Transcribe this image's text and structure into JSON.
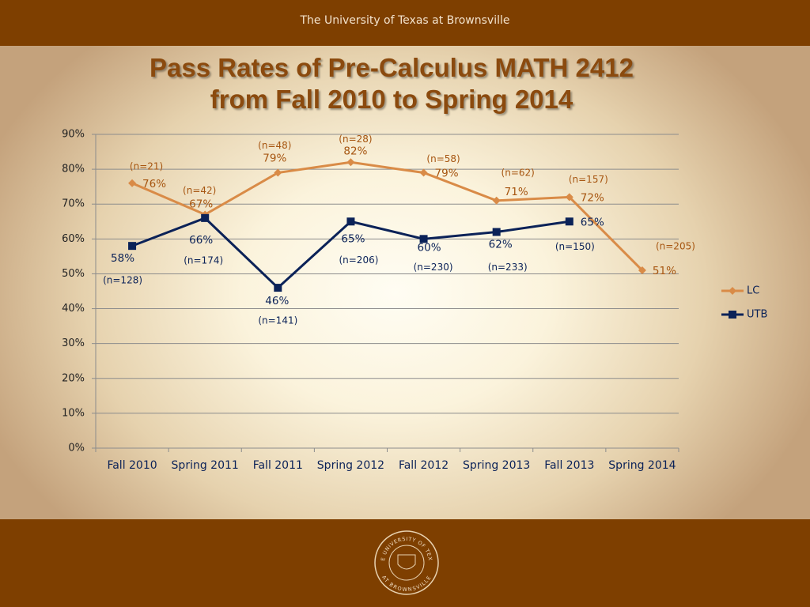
{
  "header": "The University of Texas at Brownsville",
  "logo": {
    "top_text": "THE UNIVERSITY OF TEXAS",
    "bottom_text": "AT BROWNSVILLE"
  },
  "chart_data": {
    "type": "line",
    "title": [
      "Pass Rates of Pre-Calculus MATH 2412",
      "from Fall 2010 to Spring 2014"
    ],
    "categories": [
      "Fall 2010",
      "Spring 2011",
      "Fall 2011",
      "Spring 2012",
      "Fall 2012",
      "Spring 2013",
      "Fall 2013",
      "Spring 2014"
    ],
    "ylim": [
      0,
      90
    ],
    "yticks": [
      {
        "value": 0,
        "label": "0%"
      },
      {
        "value": 10,
        "label": "10%"
      },
      {
        "value": 20,
        "label": "20%"
      },
      {
        "value": 30,
        "label": "30%"
      },
      {
        "value": 40,
        "label": "40%"
      },
      {
        "value": 50,
        "label": "50%"
      },
      {
        "value": 60,
        "label": "60%"
      },
      {
        "value": 70,
        "label": "70%"
      },
      {
        "value": 80,
        "label": "80%"
      },
      {
        "value": 90,
        "label": "90%"
      }
    ],
    "grid": true,
    "legend": "right",
    "series": [
      {
        "name": "LC",
        "color": "#d98b47",
        "label_color": "#a65510",
        "marker": "diamond",
        "values": [
          76,
          67,
          79,
          82,
          79,
          71,
          72,
          51
        ],
        "value_labels": [
          "76%",
          "67%",
          "79%",
          "82%",
          "79%",
          "71%",
          "72%",
          "51%"
        ],
        "n_labels": [
          "(n=21)",
          "(n=42)",
          "(n=48)",
          "(n=28)",
          "(n=58)",
          "(n=62)",
          "(n=157)",
          "(n=205)"
        ]
      },
      {
        "name": "UTB",
        "color": "#0b2258",
        "label_color": "#0b2258",
        "marker": "square",
        "values": [
          58,
          66,
          46,
          65,
          60,
          62,
          65,
          null
        ],
        "value_labels": [
          "58%",
          "66%",
          "46%",
          "65%",
          "60%",
          "62%",
          "65%",
          null
        ],
        "n_labels": [
          "(n=128)",
          "(n=174)",
          "(n=141)",
          "(n=206)",
          "(n=230)",
          "(n=233)",
          "(n=150)",
          null
        ]
      }
    ]
  }
}
